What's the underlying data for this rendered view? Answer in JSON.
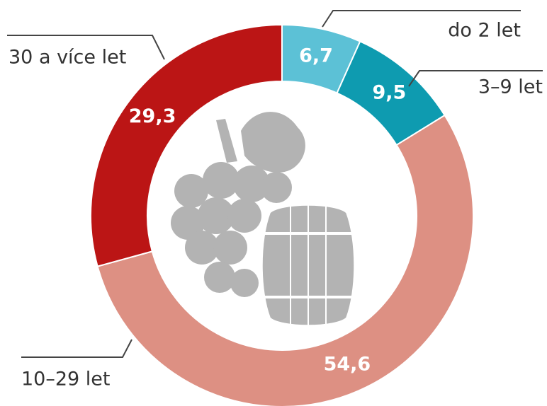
{
  "chart_data": {
    "type": "donut",
    "categories": [
      "do 2 let",
      "3–9 let",
      "10–29 let",
      "30 a více let"
    ],
    "values": [
      6.7,
      9.5,
      54.6,
      29.3
    ],
    "value_labels": [
      "6,7",
      "9,5",
      "54,6",
      "29,3"
    ],
    "colors": [
      "#5cc1d6",
      "#0e9bb0",
      "#dd9083",
      "#bb1515"
    ]
  }
}
